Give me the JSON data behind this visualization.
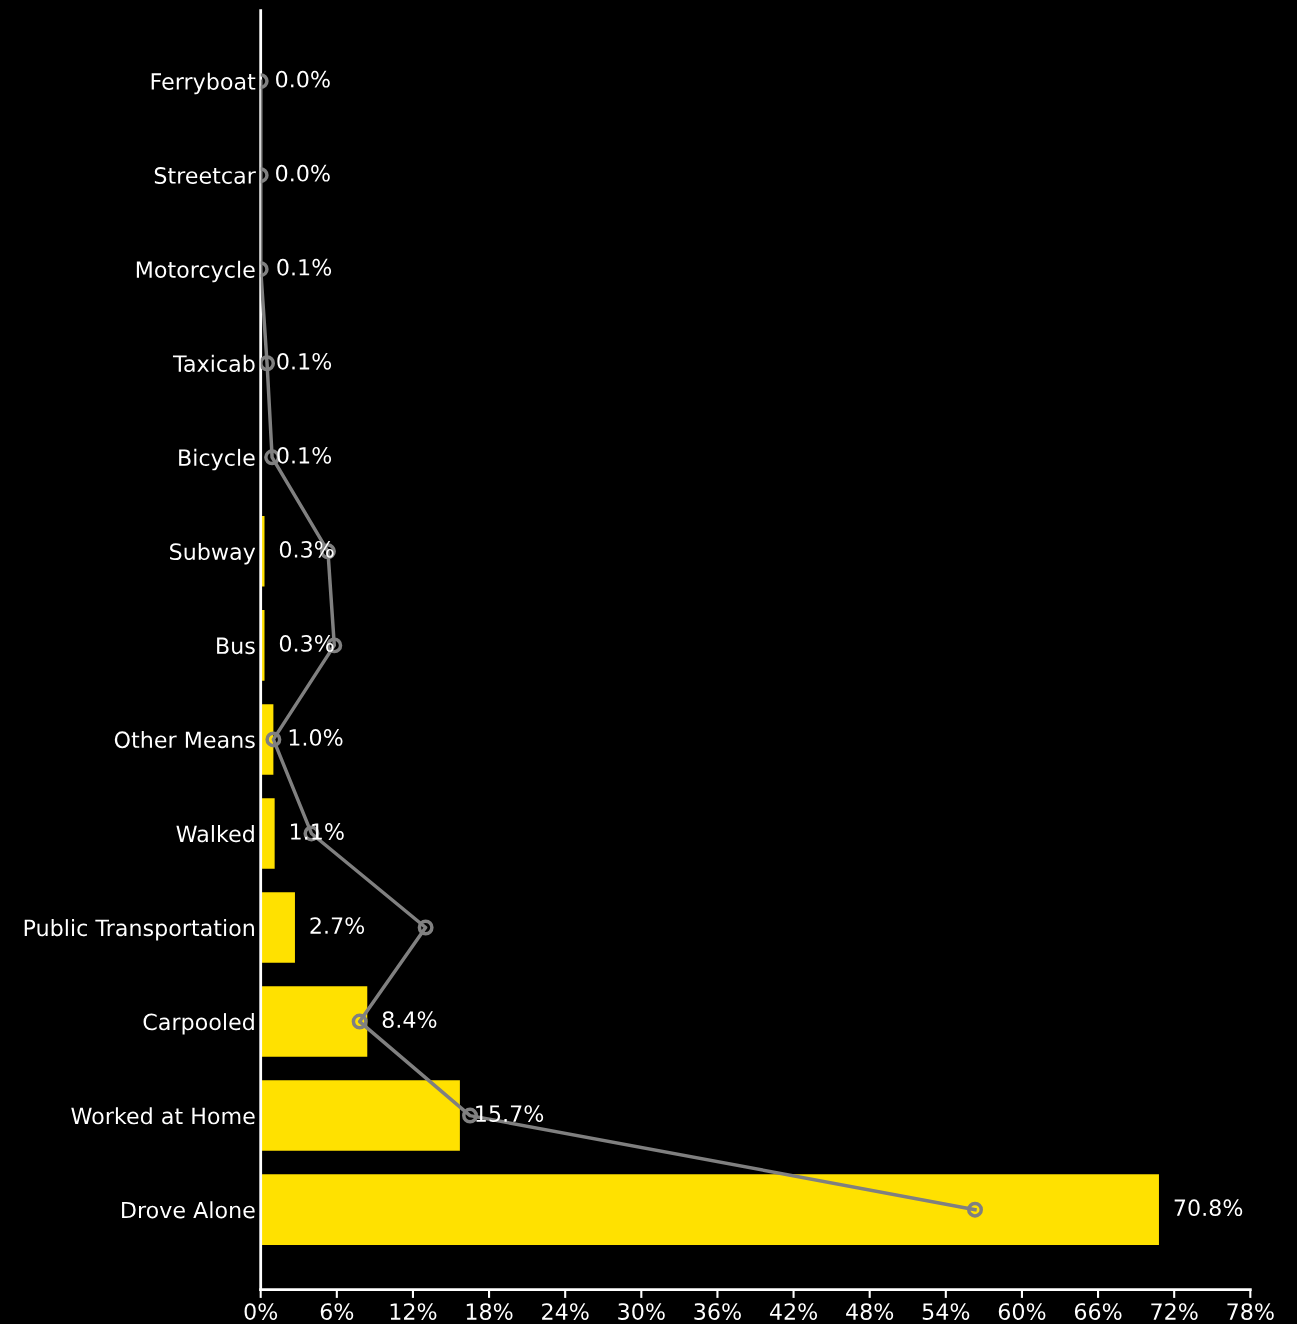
{
  "chart_data": {
    "type": "bar",
    "orientation": "horizontal",
    "categories": [
      "Ferryboat",
      "Streetcar",
      "Motorcycle",
      "Taxicab",
      "Bicycle",
      "Subway",
      "Bus",
      "Other Means",
      "Walked",
      "Public Transportation",
      "Carpooled",
      "Worked at Home",
      "Drove Alone"
    ],
    "series": [
      {
        "color": "#ffe100",
        "values": [
          0.0,
          0.0,
          0.1,
          0.1,
          0.1,
          0.3,
          0.3,
          1.0,
          1.1,
          2.7,
          8.4,
          15.7,
          70.8
        ],
        "value_labels": [
          "0.0%",
          "0.0%",
          "0.1%",
          "0.1%",
          "0.1%",
          "0.3%",
          "0.3%",
          "1.0%",
          "1.1%",
          "2.7%",
          "8.4%",
          "15.7%",
          "70.8%"
        ]
      },
      {
        "type": "line",
        "color": "#808080",
        "marker": "circle",
        "line_style": "solid",
        "values": [
          0,
          0,
          0,
          0.5,
          0.9,
          5.3,
          5.8,
          1.0,
          4.0,
          13.0,
          7.8,
          16.5,
          56.3
        ]
      }
    ],
    "xlim": [
      0,
      78
    ],
    "xticks": [
      {
        "value": 0,
        "label": "0%"
      },
      {
        "value": 6,
        "label": "6%"
      },
      {
        "value": 12,
        "label": "12%"
      },
      {
        "value": 18,
        "label": "18%"
      },
      {
        "value": 24,
        "label": "24%"
      },
      {
        "value": 30,
        "label": "30%"
      },
      {
        "value": 36,
        "label": "36%"
      },
      {
        "value": 42,
        "label": "42%"
      },
      {
        "value": 48,
        "label": "48%"
      },
      {
        "value": 54,
        "label": "54%"
      },
      {
        "value": 60,
        "label": "60%"
      },
      {
        "value": 66,
        "label": "66%"
      },
      {
        "value": 72,
        "label": "72%"
      },
      {
        "value": 78,
        "label": "78%"
      }
    ],
    "grid": false,
    "legend": false
  }
}
